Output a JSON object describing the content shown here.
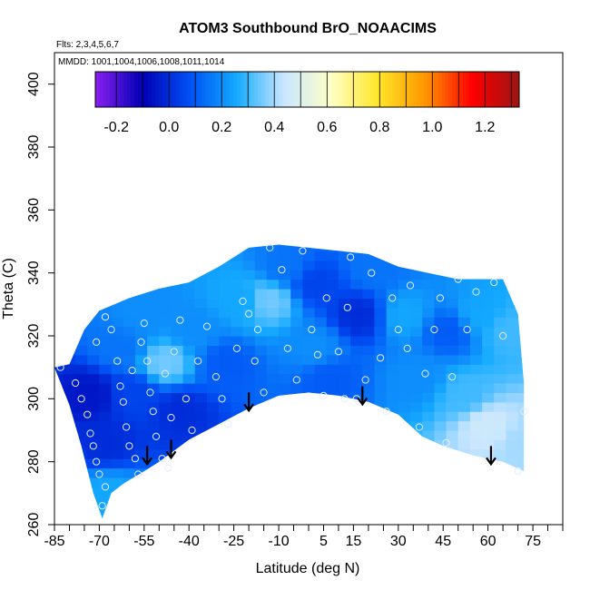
{
  "chart_data": {
    "type": "heatmap",
    "title": "ATOM3 Southbound BrO_NOAACIMS",
    "flights_note": "Flts: 2,3,4,5,6,7",
    "dates_note": "MMDD: 1001,1004,1006,1008,1011,1014",
    "xlabel": "Latitude (deg N)",
    "ylabel": "Theta (C)",
    "xlim": [
      -85,
      85
    ],
    "ylim": [
      260,
      410
    ],
    "x_ticks": [
      "-85",
      "-70",
      "-55",
      "-40",
      "-25",
      "-10",
      "5",
      "15",
      "30",
      "45",
      "60",
      "75"
    ],
    "x_tick_values": [
      -85,
      -70,
      -55,
      -40,
      -25,
      -10,
      5,
      15,
      30,
      45,
      60,
      75
    ],
    "y_ticks": [
      "260",
      "280",
      "300",
      "320",
      "340",
      "360",
      "380",
      "400"
    ],
    "y_tick_values": [
      260,
      280,
      300,
      320,
      340,
      360,
      380,
      400
    ],
    "colorbar": {
      "range": [
        -0.28,
        1.33
      ],
      "tick_labels": [
        "-0.2",
        "0.0",
        "0.2",
        "0.4",
        "0.6",
        "0.8",
        "1.0",
        "1.2"
      ],
      "tick_values": [
        -0.2,
        0.0,
        0.2,
        0.4,
        0.6,
        0.8,
        1.0,
        1.2
      ],
      "colors": [
        "#8a1ff0",
        "#0000b4",
        "#0050f5",
        "#14aaff",
        "#c8e6ff",
        "#ffffc8",
        "#ffe628",
        "#ff9600",
        "#ff0000",
        "#9b1414"
      ]
    },
    "envelope_top": [
      [
        -85,
        310
      ],
      [
        -80,
        311
      ],
      [
        -75,
        322
      ],
      [
        -70,
        328
      ],
      [
        -60,
        332
      ],
      [
        -50,
        335
      ],
      [
        -40,
        337
      ],
      [
        -30,
        342
      ],
      [
        -20,
        348
      ],
      [
        -10,
        349
      ],
      [
        0,
        348
      ],
      [
        10,
        347
      ],
      [
        20,
        346
      ],
      [
        30,
        342
      ],
      [
        40,
        340
      ],
      [
        50,
        338
      ],
      [
        60,
        338
      ],
      [
        65,
        338
      ],
      [
        70,
        327
      ],
      [
        72,
        305
      ]
    ],
    "envelope_bottom": [
      [
        72,
        277
      ],
      [
        65,
        280
      ],
      [
        55,
        282
      ],
      [
        45,
        285
      ],
      [
        38,
        288
      ],
      [
        30,
        295
      ],
      [
        20,
        299
      ],
      [
        10,
        301
      ],
      [
        0,
        302
      ],
      [
        -10,
        301
      ],
      [
        -20,
        297
      ],
      [
        -30,
        292
      ],
      [
        -40,
        287
      ],
      [
        -50,
        280
      ],
      [
        -55,
        277
      ],
      [
        -62,
        273
      ],
      [
        -66,
        270
      ],
      [
        -69,
        262
      ],
      [
        -72,
        270
      ],
      [
        -76,
        285
      ],
      [
        -80,
        298
      ],
      [
        -85,
        310
      ]
    ],
    "field_points": [
      {
        "x": -75,
        "y": 300,
        "v": -0.05
      },
      {
        "x": -70,
        "y": 285,
        "v": 0.0
      },
      {
        "x": -69,
        "y": 268,
        "v": 0.25
      },
      {
        "x": -65,
        "y": 315,
        "v": 0.15
      },
      {
        "x": -60,
        "y": 300,
        "v": 0.05
      },
      {
        "x": -58,
        "y": 325,
        "v": 0.2
      },
      {
        "x": -50,
        "y": 310,
        "v": 0.35
      },
      {
        "x": -45,
        "y": 295,
        "v": 0.0
      },
      {
        "x": -40,
        "y": 320,
        "v": 0.2
      },
      {
        "x": -30,
        "y": 310,
        "v": 0.1
      },
      {
        "x": -25,
        "y": 330,
        "v": 0.25
      },
      {
        "x": -15,
        "y": 330,
        "v": 0.35
      },
      {
        "x": -10,
        "y": 340,
        "v": 0.15
      },
      {
        "x": 0,
        "y": 335,
        "v": 0.05
      },
      {
        "x": 0,
        "y": 315,
        "v": 0.2
      },
      {
        "x": 5,
        "y": 305,
        "v": 0.1
      },
      {
        "x": 15,
        "y": 325,
        "v": 0.0
      },
      {
        "x": 20,
        "y": 340,
        "v": 0.15
      },
      {
        "x": 30,
        "y": 325,
        "v": 0.25
      },
      {
        "x": 35,
        "y": 305,
        "v": 0.2
      },
      {
        "x": 45,
        "y": 320,
        "v": 0.1
      },
      {
        "x": 50,
        "y": 300,
        "v": 0.3
      },
      {
        "x": 55,
        "y": 325,
        "v": 0.25
      },
      {
        "x": 58,
        "y": 290,
        "v": 0.45
      },
      {
        "x": 65,
        "y": 320,
        "v": 0.3
      },
      {
        "x": 70,
        "y": 285,
        "v": 0.4
      }
    ],
    "sample_points": [
      [
        -83,
        310
      ],
      [
        -78,
        305
      ],
      [
        -76,
        300
      ],
      [
        -74,
        295
      ],
      [
        -73,
        289
      ],
      [
        -72,
        285
      ],
      [
        -71,
        280
      ],
      [
        -70,
        276
      ],
      [
        -68,
        272
      ],
      [
        -69,
        266
      ],
      [
        -71,
        318
      ],
      [
        -68,
        326
      ],
      [
        -66,
        322
      ],
      [
        -64,
        312
      ],
      [
        -63,
        304
      ],
      [
        -62,
        299
      ],
      [
        -61,
        291
      ],
      [
        -60,
        285
      ],
      [
        -58,
        281
      ],
      [
        -57,
        276
      ],
      [
        -59,
        309
      ],
      [
        -56,
        318
      ],
      [
        -55,
        324
      ],
      [
        -54,
        312
      ],
      [
        -53,
        302
      ],
      [
        -52,
        296
      ],
      [
        -51,
        288
      ],
      [
        -49,
        281
      ],
      [
        -47,
        278
      ],
      [
        -46,
        294
      ],
      [
        -48,
        308
      ],
      [
        -45,
        315
      ],
      [
        -43,
        325
      ],
      [
        -41,
        300
      ],
      [
        -39,
        290
      ],
      [
        -37,
        312
      ],
      [
        -34,
        323
      ],
      [
        -31,
        307
      ],
      [
        -29,
        300
      ],
      [
        -27,
        292
      ],
      [
        -24,
        316
      ],
      [
        -22,
        331
      ],
      [
        -20,
        327
      ],
      [
        -18,
        312
      ],
      [
        -17,
        322
      ],
      [
        -15,
        302
      ],
      [
        -13,
        348
      ],
      [
        -9,
        341
      ],
      [
        -7,
        316
      ],
      [
        -4,
        306
      ],
      [
        -2,
        347
      ],
      [
        1,
        322
      ],
      [
        3,
        314
      ],
      [
        5,
        301
      ],
      [
        6,
        332
      ],
      [
        10,
        315
      ],
      [
        12,
        300
      ],
      [
        14,
        345
      ],
      [
        13,
        329
      ],
      [
        16,
        300
      ],
      [
        19,
        306
      ],
      [
        21,
        340
      ],
      [
        24,
        313
      ],
      [
        26,
        296
      ],
      [
        28,
        332
      ],
      [
        30,
        322
      ],
      [
        33,
        316
      ],
      [
        34,
        336
      ],
      [
        37,
        291
      ],
      [
        39,
        308
      ],
      [
        42,
        322
      ],
      [
        44,
        332
      ],
      [
        46,
        286
      ],
      [
        48,
        307
      ],
      [
        50,
        338
      ],
      [
        53,
        322
      ],
      [
        56,
        334
      ],
      [
        62,
        337
      ],
      [
        65,
        320
      ],
      [
        72,
        296
      ],
      [
        70,
        277
      ]
    ],
    "arrows": [
      [
        -54,
        285
      ],
      [
        -46,
        287
      ],
      [
        -20,
        302
      ],
      [
        18,
        304
      ],
      [
        61,
        285
      ]
    ]
  }
}
